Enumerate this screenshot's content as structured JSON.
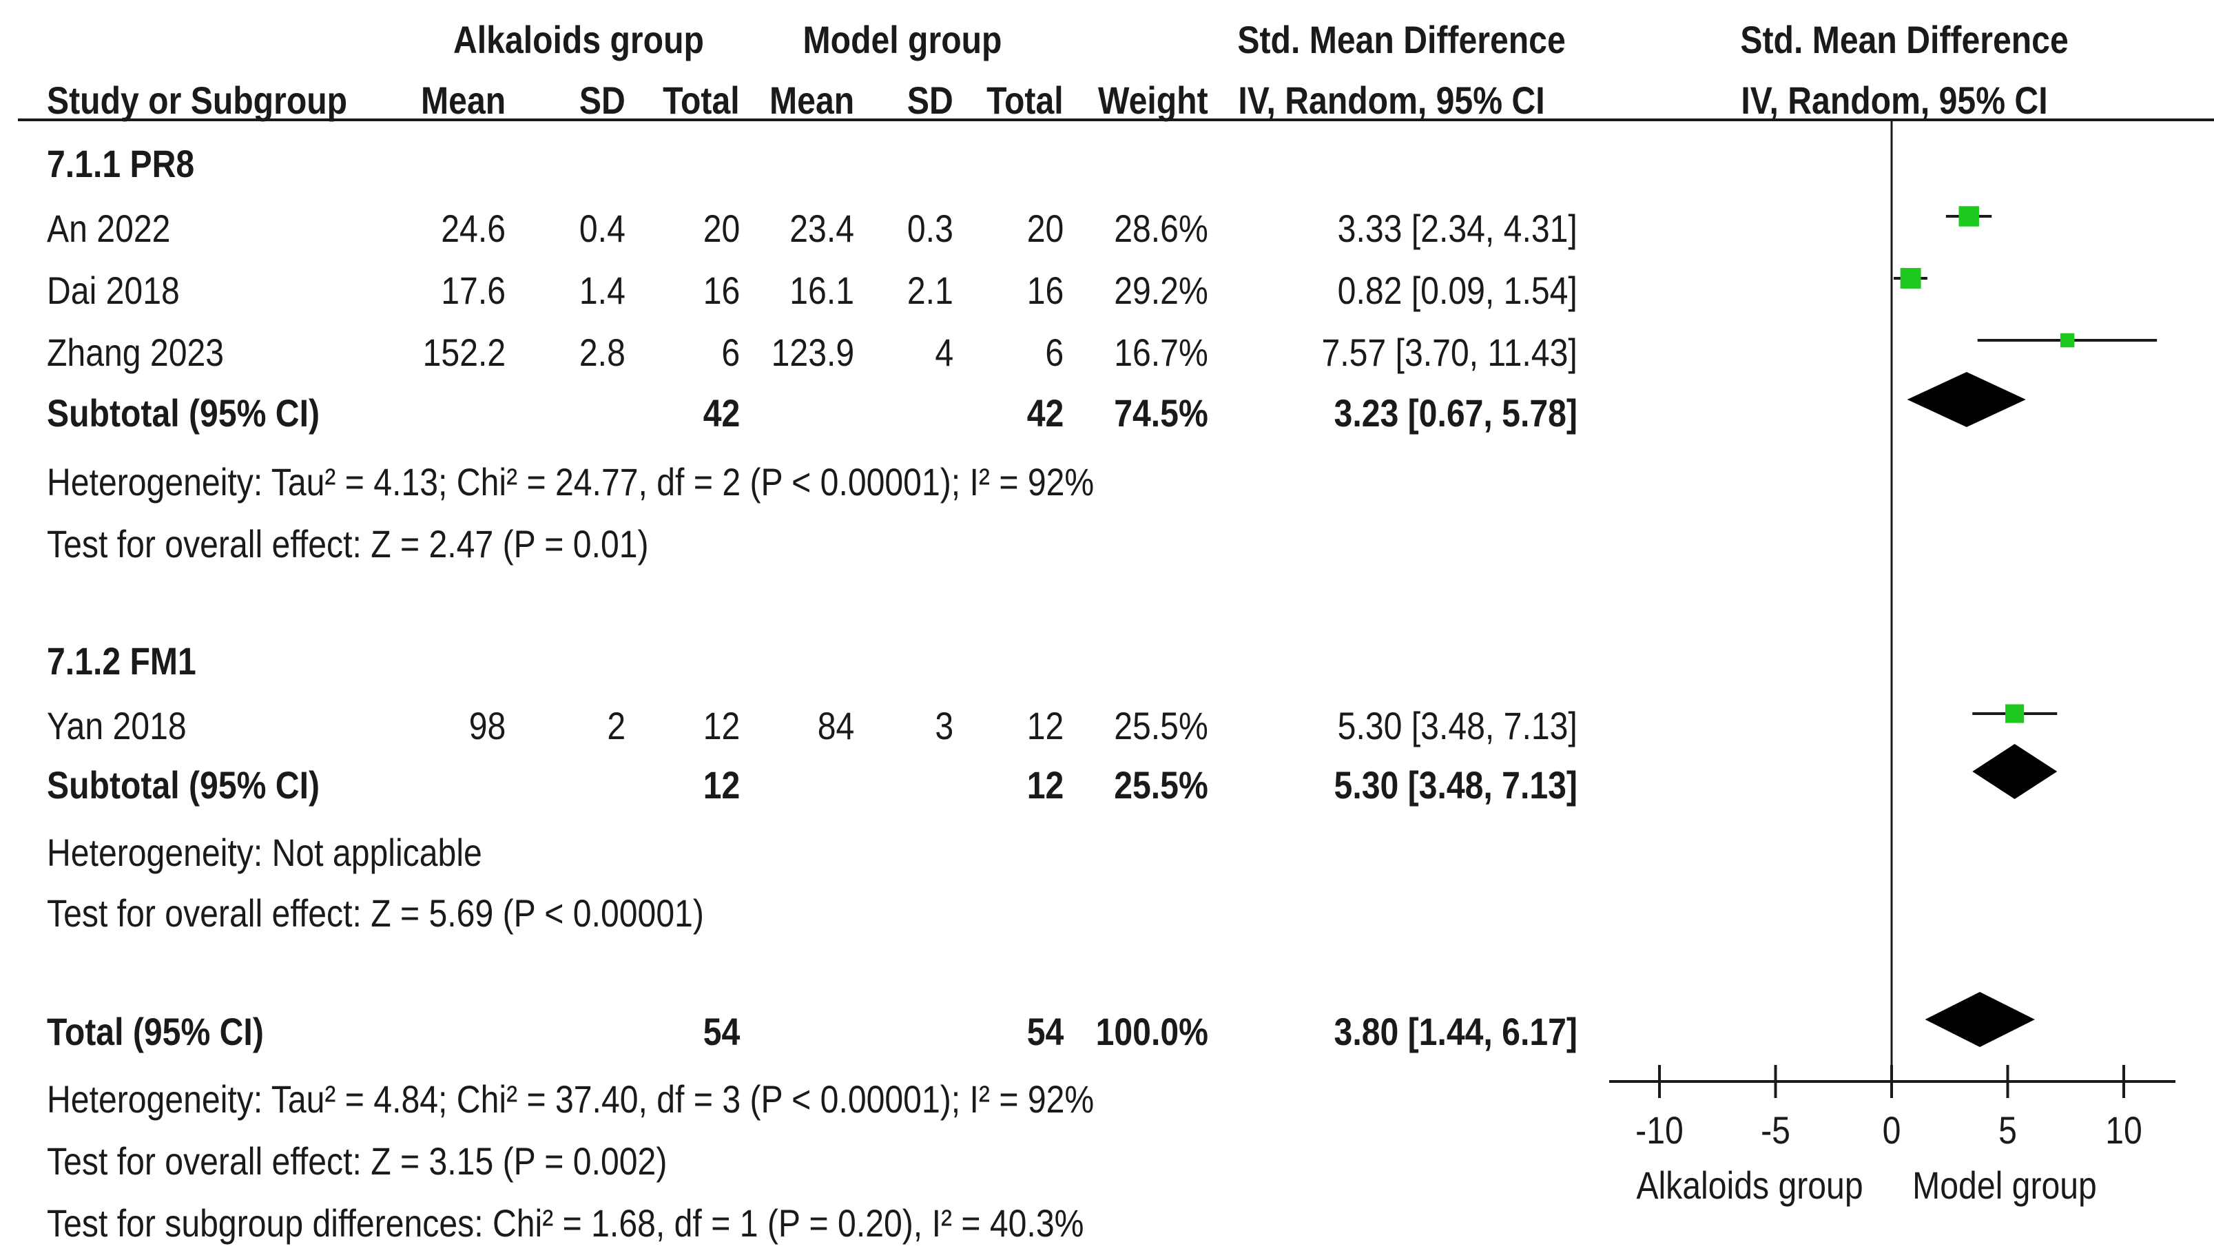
{
  "header": {
    "group1": "Alkaloids group",
    "group2": "Model group",
    "smd_title": "Std. Mean Difference",
    "smd_method": "IV, Random, 95% CI",
    "plot_title": "Std. Mean Difference",
    "plot_method": "IV, Random, 95% CI",
    "col_study": "Study or Subgroup",
    "col_mean1": "Mean",
    "col_sd1": "SD",
    "col_total1": "Total",
    "col_mean2": "Mean",
    "col_sd2": "SD",
    "col_total2": "Total",
    "col_weight": "Weight"
  },
  "sub1": {
    "title": "7.1.1 PR8",
    "studies": [
      {
        "name": "An 2022",
        "mean1": "24.6",
        "sd1": "0.4",
        "n1": "20",
        "mean2": "23.4",
        "sd2": "0.3",
        "n2": "20",
        "weight": "28.6%",
        "ci": "3.33 [2.34, 4.31]"
      },
      {
        "name": "Dai 2018",
        "mean1": "17.6",
        "sd1": "1.4",
        "n1": "16",
        "mean2": "16.1",
        "sd2": "2.1",
        "n2": "16",
        "weight": "29.2%",
        "ci": "0.82 [0.09, 1.54]"
      },
      {
        "name": "Zhang 2023",
        "mean1": "152.2",
        "sd1": "2.8",
        "n1": "6",
        "mean2": "123.9",
        "sd2": "4",
        "n2": "6",
        "weight": "16.7%",
        "ci": "7.57 [3.70, 11.43]"
      }
    ],
    "subtotal": {
      "label": "Subtotal (95% CI)",
      "n1": "42",
      "n2": "42",
      "weight": "74.5%",
      "ci": "3.23 [0.67, 5.78]"
    },
    "heterogeneity": "Heterogeneity: Tau² = 4.13; Chi² = 24.77, df = 2 (P < 0.00001); I² = 92%",
    "overall": "Test for overall effect: Z = 2.47 (P = 0.01)"
  },
  "sub2": {
    "title": "7.1.2 FM1",
    "studies": [
      {
        "name": "Yan 2018",
        "mean1": "98",
        "sd1": "2",
        "n1": "12",
        "mean2": "84",
        "sd2": "3",
        "n2": "12",
        "weight": "25.5%",
        "ci": "5.30 [3.48, 7.13]"
      }
    ],
    "subtotal": {
      "label": "Subtotal (95% CI)",
      "n1": "12",
      "n2": "12",
      "weight": "25.5%",
      "ci": "5.30 [3.48, 7.13]"
    },
    "heterogeneity": "Heterogeneity: Not applicable",
    "overall": "Test for overall effect: Z = 5.69 (P < 0.00001)"
  },
  "total": {
    "label": "Total (95% CI)",
    "n1": "54",
    "n2": "54",
    "weight": "100.0%",
    "ci": "3.80 [1.44, 6.17]",
    "heterogeneity": "Heterogeneity: Tau² = 4.84; Chi² = 37.40, df = 3 (P < 0.00001); I² = 92%",
    "overall": "Test for overall effect: Z = 3.15 (P = 0.002)",
    "subgroup": "Test for subgroup differences: Chi² = 1.68, df = 1 (P = 0.20), I² = 40.3%"
  },
  "axis": {
    "ticks": [
      -10,
      -5,
      0,
      5,
      10
    ],
    "tick_labels": [
      "-10",
      "-5",
      "0",
      "5",
      "10"
    ],
    "left_label": "Alkaloids group",
    "right_label": "Model group"
  },
  "colors": {
    "square": "#1fc81f",
    "diamond": "#000000",
    "line": "#1a1a1a"
  },
  "chart_data": {
    "type": "forest",
    "title": "Std. Mean Difference IV, Random, 95% CI",
    "xlim": [
      -12,
      12
    ],
    "studies": [
      {
        "name": "An 2022",
        "estimate": 3.33,
        "lower": 2.34,
        "upper": 4.31,
        "weight": 28.6
      },
      {
        "name": "Dai 2018",
        "estimate": 0.82,
        "lower": 0.09,
        "upper": 1.54,
        "weight": 29.2
      },
      {
        "name": "Zhang 2023",
        "estimate": 7.57,
        "lower": 3.7,
        "upper": 11.43,
        "weight": 16.7
      },
      {
        "name": "Yan 2018",
        "estimate": 5.3,
        "lower": 3.48,
        "upper": 7.13,
        "weight": 25.5
      }
    ],
    "summaries": [
      {
        "name": "Subtotal 7.1.1 PR8",
        "estimate": 3.23,
        "lower": 0.67,
        "upper": 5.78
      },
      {
        "name": "Subtotal 7.1.2 FM1",
        "estimate": 5.3,
        "lower": 3.48,
        "upper": 7.13
      },
      {
        "name": "Total",
        "estimate": 3.8,
        "lower": 1.44,
        "upper": 6.17
      }
    ],
    "xlabel_left": "Alkaloids group",
    "xlabel_right": "Model group"
  }
}
